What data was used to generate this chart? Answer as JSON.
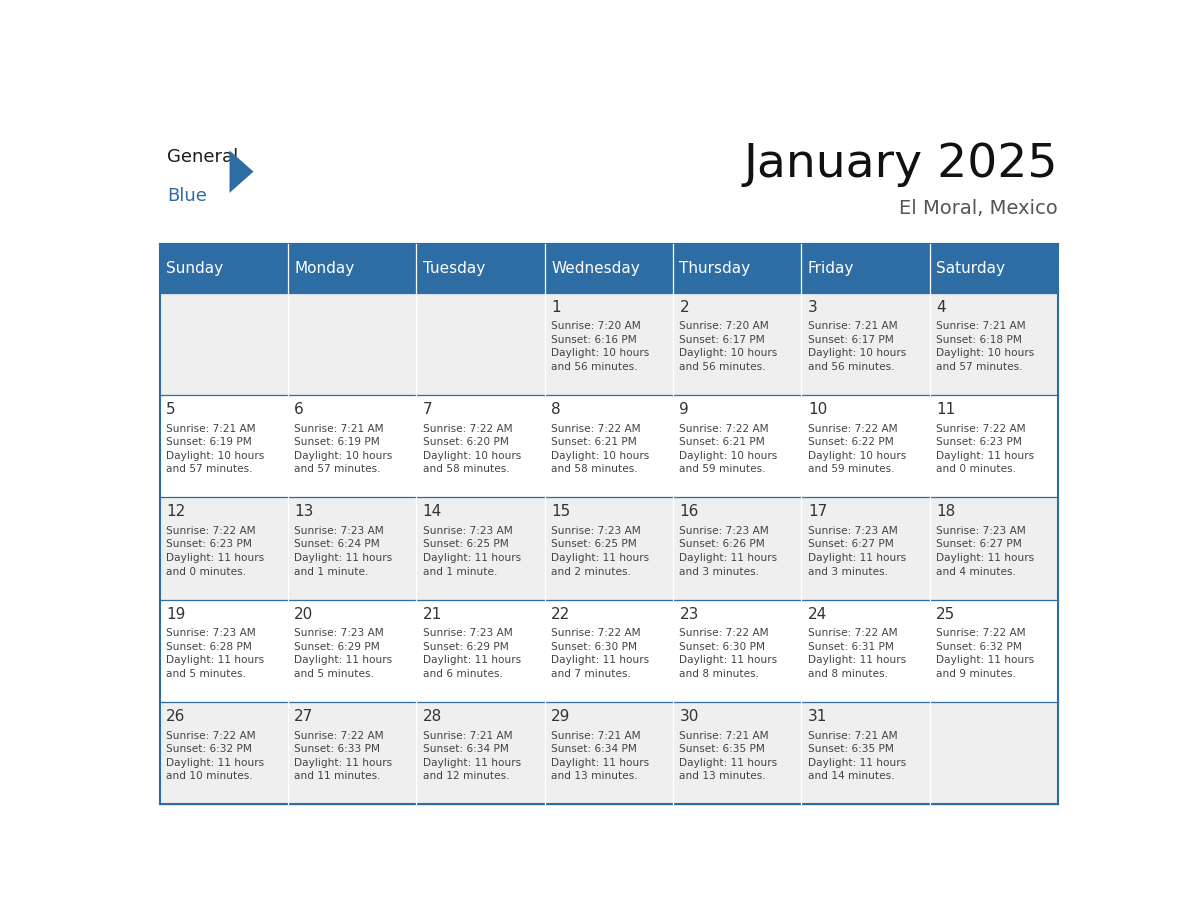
{
  "title": "January 2025",
  "subtitle": "El Moral, Mexico",
  "header_color": "#2E6DA4",
  "header_text_color": "#FFFFFF",
  "cell_bg_even": "#EFEFEF",
  "cell_bg_odd": "#FFFFFF",
  "border_color": "#2E6DA4",
  "text_color": "#444444",
  "day_number_color": "#333333",
  "logo_general_color": "#1a1a1a",
  "logo_blue_color": "#2E6DA4",
  "weekdays": [
    "Sunday",
    "Monday",
    "Tuesday",
    "Wednesday",
    "Thursday",
    "Friday",
    "Saturday"
  ],
  "weeks": [
    [
      {
        "day": null,
        "data": ""
      },
      {
        "day": null,
        "data": ""
      },
      {
        "day": null,
        "data": ""
      },
      {
        "day": 1,
        "data": "Sunrise: 7:20 AM\nSunset: 6:16 PM\nDaylight: 10 hours\nand 56 minutes."
      },
      {
        "day": 2,
        "data": "Sunrise: 7:20 AM\nSunset: 6:17 PM\nDaylight: 10 hours\nand 56 minutes."
      },
      {
        "day": 3,
        "data": "Sunrise: 7:21 AM\nSunset: 6:17 PM\nDaylight: 10 hours\nand 56 minutes."
      },
      {
        "day": 4,
        "data": "Sunrise: 7:21 AM\nSunset: 6:18 PM\nDaylight: 10 hours\nand 57 minutes."
      }
    ],
    [
      {
        "day": 5,
        "data": "Sunrise: 7:21 AM\nSunset: 6:19 PM\nDaylight: 10 hours\nand 57 minutes."
      },
      {
        "day": 6,
        "data": "Sunrise: 7:21 AM\nSunset: 6:19 PM\nDaylight: 10 hours\nand 57 minutes."
      },
      {
        "day": 7,
        "data": "Sunrise: 7:22 AM\nSunset: 6:20 PM\nDaylight: 10 hours\nand 58 minutes."
      },
      {
        "day": 8,
        "data": "Sunrise: 7:22 AM\nSunset: 6:21 PM\nDaylight: 10 hours\nand 58 minutes."
      },
      {
        "day": 9,
        "data": "Sunrise: 7:22 AM\nSunset: 6:21 PM\nDaylight: 10 hours\nand 59 minutes."
      },
      {
        "day": 10,
        "data": "Sunrise: 7:22 AM\nSunset: 6:22 PM\nDaylight: 10 hours\nand 59 minutes."
      },
      {
        "day": 11,
        "data": "Sunrise: 7:22 AM\nSunset: 6:23 PM\nDaylight: 11 hours\nand 0 minutes."
      }
    ],
    [
      {
        "day": 12,
        "data": "Sunrise: 7:22 AM\nSunset: 6:23 PM\nDaylight: 11 hours\nand 0 minutes."
      },
      {
        "day": 13,
        "data": "Sunrise: 7:23 AM\nSunset: 6:24 PM\nDaylight: 11 hours\nand 1 minute."
      },
      {
        "day": 14,
        "data": "Sunrise: 7:23 AM\nSunset: 6:25 PM\nDaylight: 11 hours\nand 1 minute."
      },
      {
        "day": 15,
        "data": "Sunrise: 7:23 AM\nSunset: 6:25 PM\nDaylight: 11 hours\nand 2 minutes."
      },
      {
        "day": 16,
        "data": "Sunrise: 7:23 AM\nSunset: 6:26 PM\nDaylight: 11 hours\nand 3 minutes."
      },
      {
        "day": 17,
        "data": "Sunrise: 7:23 AM\nSunset: 6:27 PM\nDaylight: 11 hours\nand 3 minutes."
      },
      {
        "day": 18,
        "data": "Sunrise: 7:23 AM\nSunset: 6:27 PM\nDaylight: 11 hours\nand 4 minutes."
      }
    ],
    [
      {
        "day": 19,
        "data": "Sunrise: 7:23 AM\nSunset: 6:28 PM\nDaylight: 11 hours\nand 5 minutes."
      },
      {
        "day": 20,
        "data": "Sunrise: 7:23 AM\nSunset: 6:29 PM\nDaylight: 11 hours\nand 5 minutes."
      },
      {
        "day": 21,
        "data": "Sunrise: 7:23 AM\nSunset: 6:29 PM\nDaylight: 11 hours\nand 6 minutes."
      },
      {
        "day": 22,
        "data": "Sunrise: 7:22 AM\nSunset: 6:30 PM\nDaylight: 11 hours\nand 7 minutes."
      },
      {
        "day": 23,
        "data": "Sunrise: 7:22 AM\nSunset: 6:30 PM\nDaylight: 11 hours\nand 8 minutes."
      },
      {
        "day": 24,
        "data": "Sunrise: 7:22 AM\nSunset: 6:31 PM\nDaylight: 11 hours\nand 8 minutes."
      },
      {
        "day": 25,
        "data": "Sunrise: 7:22 AM\nSunset: 6:32 PM\nDaylight: 11 hours\nand 9 minutes."
      }
    ],
    [
      {
        "day": 26,
        "data": "Sunrise: 7:22 AM\nSunset: 6:32 PM\nDaylight: 11 hours\nand 10 minutes."
      },
      {
        "day": 27,
        "data": "Sunrise: 7:22 AM\nSunset: 6:33 PM\nDaylight: 11 hours\nand 11 minutes."
      },
      {
        "day": 28,
        "data": "Sunrise: 7:21 AM\nSunset: 6:34 PM\nDaylight: 11 hours\nand 12 minutes."
      },
      {
        "day": 29,
        "data": "Sunrise: 7:21 AM\nSunset: 6:34 PM\nDaylight: 11 hours\nand 13 minutes."
      },
      {
        "day": 30,
        "data": "Sunrise: 7:21 AM\nSunset: 6:35 PM\nDaylight: 11 hours\nand 13 minutes."
      },
      {
        "day": 31,
        "data": "Sunrise: 7:21 AM\nSunset: 6:35 PM\nDaylight: 11 hours\nand 14 minutes."
      },
      {
        "day": null,
        "data": ""
      }
    ]
  ]
}
